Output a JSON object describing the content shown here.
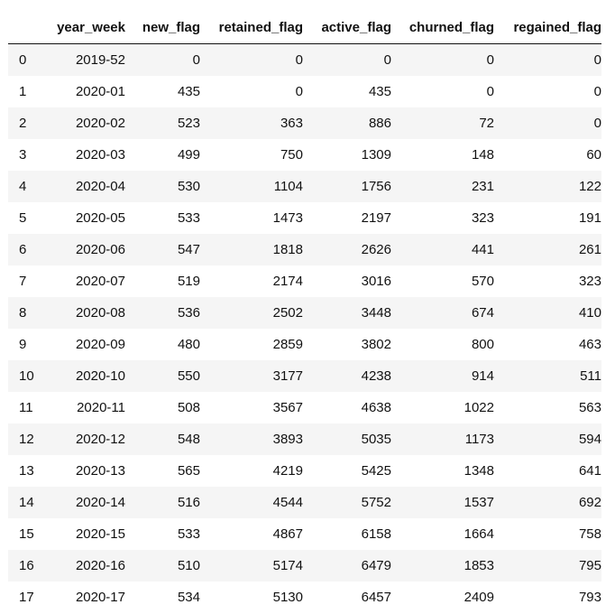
{
  "table": {
    "columns": [
      "",
      "year_week",
      "new_flag",
      "retained_flag",
      "active_flag",
      "churned_flag",
      "regained_flag"
    ],
    "rows": [
      [
        "0",
        "2019-52",
        "0",
        "0",
        "0",
        "0",
        "0"
      ],
      [
        "1",
        "2020-01",
        "435",
        "0",
        "435",
        "0",
        "0"
      ],
      [
        "2",
        "2020-02",
        "523",
        "363",
        "886",
        "72",
        "0"
      ],
      [
        "3",
        "2020-03",
        "499",
        "750",
        "1309",
        "148",
        "60"
      ],
      [
        "4",
        "2020-04",
        "530",
        "1104",
        "1756",
        "231",
        "122"
      ],
      [
        "5",
        "2020-05",
        "533",
        "1473",
        "2197",
        "323",
        "191"
      ],
      [
        "6",
        "2020-06",
        "547",
        "1818",
        "2626",
        "441",
        "261"
      ],
      [
        "7",
        "2020-07",
        "519",
        "2174",
        "3016",
        "570",
        "323"
      ],
      [
        "8",
        "2020-08",
        "536",
        "2502",
        "3448",
        "674",
        "410"
      ],
      [
        "9",
        "2020-09",
        "480",
        "2859",
        "3802",
        "800",
        "463"
      ],
      [
        "10",
        "2020-10",
        "550",
        "3177",
        "4238",
        "914",
        "511"
      ],
      [
        "11",
        "2020-11",
        "508",
        "3567",
        "4638",
        "1022",
        "563"
      ],
      [
        "12",
        "2020-12",
        "548",
        "3893",
        "5035",
        "1173",
        "594"
      ],
      [
        "13",
        "2020-13",
        "565",
        "4219",
        "5425",
        "1348",
        "641"
      ],
      [
        "14",
        "2020-14",
        "516",
        "4544",
        "5752",
        "1537",
        "692"
      ],
      [
        "15",
        "2020-15",
        "533",
        "4867",
        "6158",
        "1664",
        "758"
      ],
      [
        "16",
        "2020-16",
        "510",
        "5174",
        "6479",
        "1853",
        "795"
      ],
      [
        "17",
        "2020-17",
        "534",
        "5130",
        "6457",
        "2409",
        "793"
      ]
    ]
  }
}
